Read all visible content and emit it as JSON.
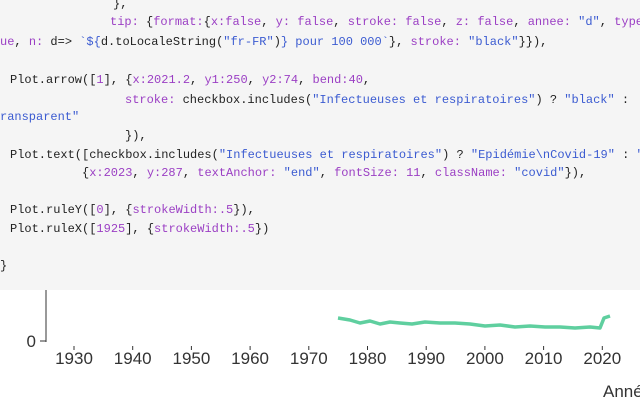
{
  "code": {
    "lines": [
      [
        {
          "text": "},",
          "color": "#222222"
        }
      ],
      [
        {
          "text": "tip:",
          "color": "#9b3fc4"
        },
        {
          "text": " {",
          "color": "#222222"
        },
        {
          "text": "format:",
          "color": "#9b3fc4"
        },
        {
          "text": "{",
          "color": "#222222"
        },
        {
          "text": "x:false",
          "color": "#9b3fc4"
        },
        {
          "text": ", ",
          "color": "#222222"
        },
        {
          "text": "y: false",
          "color": "#9b3fc4"
        },
        {
          "text": ", ",
          "color": "#222222"
        },
        {
          "text": "stroke: false",
          "color": "#9b3fc4"
        },
        {
          "text": ", ",
          "color": "#222222"
        },
        {
          "text": "z: false",
          "color": "#9b3fc4"
        },
        {
          "text": ", ",
          "color": "#222222"
        },
        {
          "text": "annee: ",
          "color": "#9b3fc4"
        },
        {
          "text": "\"d\"",
          "color": "#3b5bd1"
        },
        {
          "text": ", ",
          "color": "#222222"
        },
        {
          "text": "type",
          "color": "#9b3fc4"
        }
      ],
      [
        {
          "text": "ue",
          "color": "#9b3fc4"
        },
        {
          "text": ", ",
          "color": "#222222"
        },
        {
          "text": "n: ",
          "color": "#9b3fc4"
        },
        {
          "text": "d=> ",
          "color": "#222222"
        },
        {
          "text": "`${",
          "color": "#3b5bd1"
        },
        {
          "text": "d.toLocaleString(",
          "color": "#222222"
        },
        {
          "text": "\"fr-FR\"",
          "color": "#3b5bd1"
        },
        {
          "text": ")",
          "color": "#222222"
        },
        {
          "text": "} pour 100 000`",
          "color": "#3b5bd1"
        },
        {
          "text": "}, ",
          "color": "#222222"
        },
        {
          "text": "stroke: ",
          "color": "#9b3fc4"
        },
        {
          "text": "\"black\"",
          "color": "#3b5bd1"
        },
        {
          "text": "}}),",
          "color": "#222222"
        }
      ],
      [
        {
          "text": "Plot.arrow([",
          "color": "#222222"
        },
        {
          "text": "1",
          "color": "#9b3fc4"
        },
        {
          "text": "], {",
          "color": "#222222"
        },
        {
          "text": "x:2021.2",
          "color": "#9b3fc4"
        },
        {
          "text": ", ",
          "color": "#222222"
        },
        {
          "text": "y1:250",
          "color": "#9b3fc4"
        },
        {
          "text": ", ",
          "color": "#222222"
        },
        {
          "text": "y2:74",
          "color": "#9b3fc4"
        },
        {
          "text": ", ",
          "color": "#222222"
        },
        {
          "text": "bend:40",
          "color": "#9b3fc4"
        },
        {
          "text": ",",
          "color": "#222222"
        }
      ],
      [
        {
          "text": "stroke: ",
          "color": "#9b3fc4"
        },
        {
          "text": "checkbox.includes(",
          "color": "#222222"
        },
        {
          "text": "\"Infectueuses et respiratoires\"",
          "color": "#3b5bd1"
        },
        {
          "text": ") ? ",
          "color": "#222222"
        },
        {
          "text": "\"black\"",
          "color": "#3b5bd1"
        },
        {
          "text": " :",
          "color": "#222222"
        }
      ],
      [
        {
          "text": "ransparent\"",
          "color": "#3b5bd1"
        }
      ],
      [
        {
          "text": "}),",
          "color": "#222222"
        }
      ],
      [
        {
          "text": "Plot.text([checkbox.includes(",
          "color": "#222222"
        },
        {
          "text": "\"Infectueuses et respiratoires\"",
          "color": "#3b5bd1"
        },
        {
          "text": ") ? ",
          "color": "#222222"
        },
        {
          "text": "\"Epidémie\\nCovid-19\"",
          "color": "#3b5bd1"
        },
        {
          "text": " : ",
          "color": "#222222"
        },
        {
          "text": "\"",
          "color": "#3b5bd1"
        }
      ],
      [
        {
          "text": "{",
          "color": "#222222"
        },
        {
          "text": "x:2023",
          "color": "#9b3fc4"
        },
        {
          "text": ", ",
          "color": "#222222"
        },
        {
          "text": "y:287",
          "color": "#9b3fc4"
        },
        {
          "text": ", ",
          "color": "#222222"
        },
        {
          "text": "textAnchor: ",
          "color": "#9b3fc4"
        },
        {
          "text": "\"end\"",
          "color": "#3b5bd1"
        },
        {
          "text": ", ",
          "color": "#222222"
        },
        {
          "text": "fontSize: 11",
          "color": "#9b3fc4"
        },
        {
          "text": ", ",
          "color": "#222222"
        },
        {
          "text": "className: ",
          "color": "#9b3fc4"
        },
        {
          "text": "\"covid\"",
          "color": "#3b5bd1"
        },
        {
          "text": "}),",
          "color": "#222222"
        }
      ],
      [
        {
          "text": "Plot.ruleY([",
          "color": "#222222"
        },
        {
          "text": "0",
          "color": "#9b3fc4"
        },
        {
          "text": "], {",
          "color": "#222222"
        },
        {
          "text": "strokeWidth:.5",
          "color": "#9b3fc4"
        },
        {
          "text": "}),",
          "color": "#222222"
        }
      ],
      [
        {
          "text": "Plot.ruleX([",
          "color": "#222222"
        },
        {
          "text": "1925",
          "color": "#9b3fc4"
        },
        {
          "text": "], {",
          "color": "#222222"
        },
        {
          "text": "strokeWidth:.5",
          "color": "#9b3fc4"
        },
        {
          "text": "})",
          "color": "#222222"
        }
      ],
      [
        {
          "text": "}",
          "color": "#222222"
        }
      ]
    ]
  },
  "chart": {
    "y_ticks": [
      0
    ],
    "x_ticks": [
      1930,
      1940,
      1950,
      1960,
      1970,
      1980,
      1990,
      2000,
      2010,
      2020
    ],
    "x_label": "Année"
  }
}
